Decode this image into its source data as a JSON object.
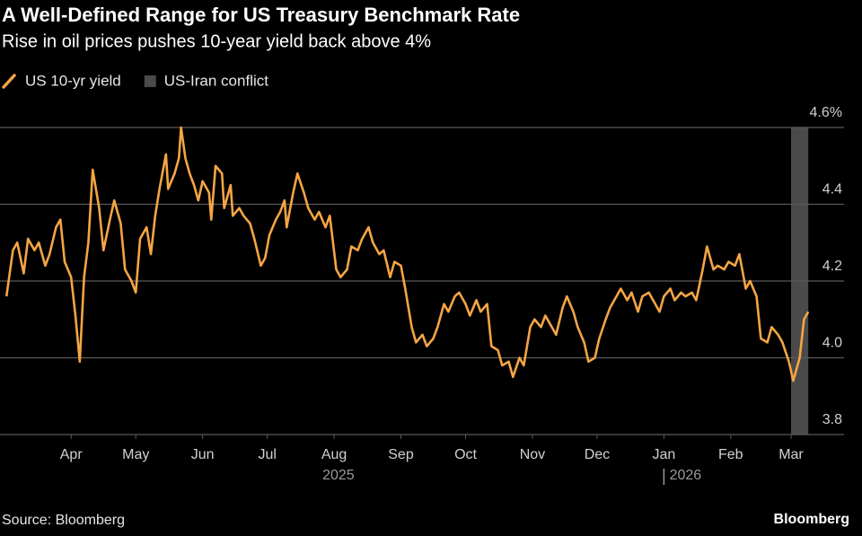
{
  "chart_data": {
    "type": "line",
    "title": "A Well-Defined Range for US Treasury Benchmark Rate",
    "subtitle": "Rise in oil prices pushes 10-year yield back above 4%",
    "source": "Source: Bloomberg",
    "brand": "Bloomberg",
    "x": [
      60,
      63,
      65,
      68,
      70,
      73,
      75,
      78,
      80,
      83,
      85,
      87,
      90,
      92,
      94,
      96,
      98,
      100,
      103,
      105,
      108,
      110,
      113,
      115,
      118,
      120,
      122,
      125,
      127,
      129,
      131,
      134,
      135,
      138,
      140,
      141,
      143,
      145,
      147,
      149,
      151,
      154,
      155,
      157,
      160,
      161,
      164,
      165,
      168,
      170,
      173,
      175,
      178,
      180,
      182,
      185,
      187,
      189,
      190,
      193,
      195,
      198,
      200,
      203,
      205,
      208,
      210,
      213,
      215,
      218,
      220,
      223,
      225,
      228,
      230,
      233,
      235,
      238,
      240,
      243,
      245,
      248,
      250,
      253,
      255,
      258,
      260,
      263,
      265,
      268,
      270,
      273,
      275,
      278,
      280,
      283,
      285,
      288,
      290,
      293,
      295,
      298,
      300,
      303,
      305,
      308,
      310,
      313,
      315,
      318,
      320,
      323,
      325,
      328,
      330,
      333,
      335,
      338,
      340,
      343,
      345,
      348,
      350,
      353,
      355,
      358,
      360,
      363,
      365,
      368,
      370,
      373,
      375,
      378,
      380,
      383,
      385,
      388,
      390,
      393,
      395,
      398,
      400,
      403,
      405,
      408,
      410,
      413,
      415,
      418,
      420,
      423,
      425,
      428,
      430,
      432
    ],
    "series": [
      {
        "name": "US 10-yr yield",
        "color": "#f5a544",
        "values": [
          4.16,
          4.28,
          4.3,
          4.22,
          4.31,
          4.28,
          4.3,
          4.24,
          4.27,
          4.34,
          4.36,
          4.25,
          4.21,
          4.11,
          3.99,
          4.21,
          4.3,
          4.49,
          4.39,
          4.28,
          4.36,
          4.41,
          4.35,
          4.23,
          4.2,
          4.17,
          4.31,
          4.34,
          4.27,
          4.37,
          4.44,
          4.53,
          4.44,
          4.48,
          4.52,
          4.6,
          4.52,
          4.48,
          4.45,
          4.41,
          4.46,
          4.43,
          4.36,
          4.5,
          4.48,
          4.39,
          4.45,
          4.37,
          4.39,
          4.37,
          4.35,
          4.31,
          4.24,
          4.26,
          4.32,
          4.36,
          4.38,
          4.41,
          4.34,
          4.43,
          4.48,
          4.43,
          4.39,
          4.36,
          4.38,
          4.34,
          4.37,
          4.23,
          4.21,
          4.23,
          4.29,
          4.28,
          4.31,
          4.34,
          4.3,
          4.27,
          4.28,
          4.21,
          4.25,
          4.24,
          4.18,
          4.08,
          4.04,
          4.06,
          4.03,
          4.05,
          4.08,
          4.14,
          4.12,
          4.16,
          4.17,
          4.14,
          4.11,
          4.15,
          4.12,
          4.14,
          4.03,
          4.02,
          3.98,
          3.99,
          3.95,
          4.0,
          3.98,
          4.08,
          4.1,
          4.08,
          4.11,
          4.08,
          4.06,
          4.13,
          4.16,
          4.12,
          4.08,
          4.04,
          3.99,
          4.0,
          4.05,
          4.1,
          4.13,
          4.16,
          4.18,
          4.15,
          4.17,
          4.12,
          4.16,
          4.17,
          4.15,
          4.12,
          4.16,
          4.18,
          4.15,
          4.17,
          4.16,
          4.17,
          4.15,
          4.23,
          4.29,
          4.23,
          4.24,
          4.23,
          4.25,
          4.24,
          4.27,
          4.18,
          4.2,
          4.16,
          4.05,
          4.04,
          4.08,
          4.06,
          4.04,
          3.99,
          3.94,
          4.0,
          4.1,
          4.12
        ]
      }
    ],
    "highlight": {
      "name": "US-Iran conflict",
      "range": [
        424,
        432
      ],
      "color": "#4a4a4a"
    },
    "xlim": [
      57,
      434
    ],
    "xticks": [
      {
        "value": 90,
        "label": "Apr"
      },
      {
        "value": 120,
        "label": "May"
      },
      {
        "value": 151,
        "label": "Jun"
      },
      {
        "value": 181,
        "label": "Jul"
      },
      {
        "value": 212,
        "label": "Aug"
      },
      {
        "value": 243,
        "label": "Sep"
      },
      {
        "value": 273,
        "label": "Oct"
      },
      {
        "value": 304,
        "label": "Nov"
      },
      {
        "value": 334,
        "label": "Dec"
      },
      {
        "value": 365,
        "label": "Jan"
      },
      {
        "value": 396,
        "label": "Feb"
      },
      {
        "value": 424,
        "label": "Mar"
      }
    ],
    "year_labels": [
      {
        "value": 214,
        "label": "2025"
      },
      {
        "value": 375,
        "label": "2026"
      }
    ],
    "year_divider": 365,
    "ylim": [
      3.8,
      4.6
    ],
    "yticks": [
      {
        "value": 4.6,
        "label": "4.6%"
      },
      4.4,
      4.2,
      {
        "value": 4,
        "label": "4.0"
      },
      3.8
    ],
    "grid": true
  }
}
